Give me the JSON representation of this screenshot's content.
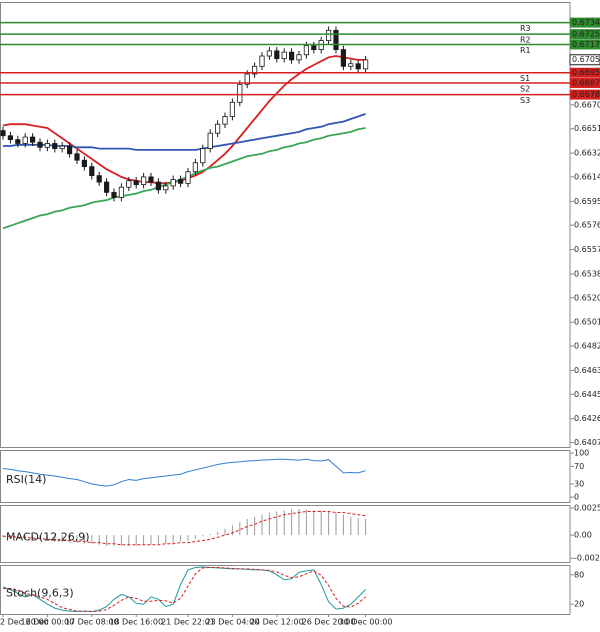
{
  "chart_data": [
    {
      "type": "candlestick",
      "categories": [
        "2 Dec 20:00",
        null,
        null,
        null,
        null,
        null,
        "16 Dec 00:00",
        null,
        null,
        null,
        null,
        null,
        "17 Dec 08:00",
        null,
        null,
        null,
        null,
        null,
        "18 Dec 16:00",
        null,
        null,
        null,
        null,
        null,
        null,
        "21 Dec 22:01",
        null,
        null,
        null,
        null,
        null,
        "23 Dec 04:00",
        null,
        null,
        null,
        null,
        null,
        "24 Dec 12:00",
        null,
        null,
        null,
        null,
        null,
        null,
        "26 Dec 20:00",
        null,
        null,
        null,
        null,
        "30 Dec 00:00"
      ],
      "open": [
        0.665,
        0.6646,
        0.6643,
        0.664,
        0.6645,
        0.6641,
        0.6637,
        0.664,
        0.6636,
        0.6638,
        0.6632,
        0.6627,
        0.6622,
        0.6615,
        0.661,
        0.6602,
        0.6598,
        0.6606,
        0.6611,
        0.6608,
        0.6614,
        0.661,
        0.6604,
        0.6607,
        0.6612,
        0.6609,
        0.6618,
        0.6625,
        0.6636,
        0.6648,
        0.6655,
        0.6661,
        0.6672,
        0.6686,
        0.6694,
        0.67,
        0.6708,
        0.6712,
        0.6706,
        0.6711,
        0.6705,
        0.6709,
        0.6716,
        0.6713,
        0.672,
        0.6728,
        0.6713,
        0.67,
        0.6702,
        0.6698
      ],
      "high": [
        0.6653,
        0.6649,
        0.6646,
        0.6648,
        0.6648,
        0.6644,
        0.6643,
        0.6643,
        0.6641,
        0.6641,
        0.6635,
        0.663,
        0.6625,
        0.6618,
        0.6613,
        0.6605,
        0.6609,
        0.6614,
        0.6614,
        0.6617,
        0.6617,
        0.6613,
        0.661,
        0.6615,
        0.6615,
        0.6621,
        0.6628,
        0.6639,
        0.6651,
        0.6658,
        0.6664,
        0.6675,
        0.6689,
        0.6697,
        0.6703,
        0.6711,
        0.6715,
        0.6715,
        0.6714,
        0.6714,
        0.6712,
        0.6719,
        0.6719,
        0.6723,
        0.6731,
        0.6731,
        0.6716,
        0.6705,
        0.6705,
        0.6708
      ],
      "low": [
        0.6643,
        0.664,
        0.6637,
        0.6637,
        0.6638,
        0.6634,
        0.6634,
        0.6633,
        0.6633,
        0.6629,
        0.6624,
        0.6619,
        0.6612,
        0.6607,
        0.6599,
        0.6595,
        0.6595,
        0.6603,
        0.6605,
        0.6605,
        0.6607,
        0.6601,
        0.6601,
        0.6604,
        0.6606,
        0.6606,
        0.6615,
        0.6622,
        0.6633,
        0.6645,
        0.6652,
        0.6658,
        0.6669,
        0.6683,
        0.6691,
        0.6697,
        0.6705,
        0.6703,
        0.6703,
        0.6702,
        0.6702,
        0.6706,
        0.671,
        0.671,
        0.6717,
        0.671,
        0.6697,
        0.6697,
        0.6695,
        0.6695
      ],
      "close": [
        0.6646,
        0.6643,
        0.664,
        0.6645,
        0.6641,
        0.6637,
        0.664,
        0.6636,
        0.6638,
        0.6632,
        0.6627,
        0.6622,
        0.6615,
        0.661,
        0.6602,
        0.6598,
        0.6606,
        0.6611,
        0.6608,
        0.6614,
        0.661,
        0.6604,
        0.6607,
        0.6612,
        0.6609,
        0.6618,
        0.6625,
        0.6636,
        0.6648,
        0.6655,
        0.6661,
        0.6672,
        0.6686,
        0.6694,
        0.67,
        0.6708,
        0.6712,
        0.6706,
        0.6711,
        0.6705,
        0.6709,
        0.6716,
        0.6713,
        0.672,
        0.6728,
        0.6713,
        0.67,
        0.6702,
        0.6698,
        0.6705
      ],
      "up_color": "#ffffff",
      "down_color": "#1a1a1a",
      "wick_color": "#1a1a1a",
      "series": [
        {
          "color": "#d62020",
          "values": [
            0.6654,
            0.6655,
            0.6655,
            0.6655,
            0.6654,
            0.6653,
            0.6652,
            0.6648,
            0.6644,
            0.664,
            0.6636,
            0.6632,
            0.6628,
            0.6624,
            0.662,
            0.6617,
            0.6614,
            0.6612,
            0.6611,
            0.661,
            0.661,
            0.6609,
            0.6609,
            0.661,
            0.6611,
            0.6613,
            0.6615,
            0.6618,
            0.6622,
            0.6627,
            0.6632,
            0.6638,
            0.6645,
            0.6652,
            0.6659,
            0.6666,
            0.6673,
            0.6679,
            0.6685,
            0.669,
            0.6694,
            0.6698,
            0.6701,
            0.6704,
            0.6707,
            0.6708,
            0.6707,
            0.6706,
            0.6705,
            0.6705
          ]
        },
        {
          "color": "#2f56b4",
          "values": [
            0.6638,
            0.6638,
            0.6639,
            0.6639,
            0.6639,
            0.6639,
            0.6639,
            0.6638,
            0.6638,
            0.6638,
            0.6637,
            0.6637,
            0.6637,
            0.6636,
            0.6636,
            0.6636,
            0.6636,
            0.6636,
            0.6635,
            0.6635,
            0.6635,
            0.6635,
            0.6635,
            0.6635,
            0.6635,
            0.6635,
            0.6635,
            0.6636,
            0.6637,
            0.6638,
            0.6639,
            0.664,
            0.6641,
            0.6642,
            0.6643,
            0.6644,
            0.6645,
            0.6646,
            0.6647,
            0.6648,
            0.6649,
            0.6651,
            0.6652,
            0.6653,
            0.6655,
            0.6656,
            0.6657,
            0.6659,
            0.6661,
            0.6663
          ]
        },
        {
          "color": "#3aa657",
          "values": [
            0.6574,
            0.6576,
            0.6578,
            0.658,
            0.6582,
            0.6584,
            0.6585,
            0.6587,
            0.6588,
            0.659,
            0.6591,
            0.6592,
            0.6594,
            0.6595,
            0.6596,
            0.6598,
            0.6599,
            0.66,
            0.6601,
            0.6603,
            0.6604,
            0.6606,
            0.6608,
            0.661,
            0.6612,
            0.6614,
            0.6617,
            0.6619,
            0.6621,
            0.6622,
            0.6624,
            0.6626,
            0.6628,
            0.663,
            0.6631,
            0.6632,
            0.6634,
            0.6635,
            0.6637,
            0.6638,
            0.664,
            0.6641,
            0.6643,
            0.6644,
            0.6646,
            0.6647,
            0.6648,
            0.6649,
            0.6651,
            0.6652
          ]
        }
      ],
      "levels": [
        {
          "name": "R3",
          "value": 0.6734,
          "label": "0.67340",
          "color": "#2e8b2e"
        },
        {
          "name": "R2",
          "value": 0.6725,
          "label": "0.67250",
          "color": "#2e8b2e"
        },
        {
          "name": "R1",
          "value": 0.6717,
          "label": "0.67170",
          "color": "#2e8b2e"
        },
        {
          "name": "S1",
          "value": 0.6695,
          "label": "0.66950",
          "color": "#d62020"
        },
        {
          "name": "S2",
          "value": 0.6687,
          "label": "0.66870",
          "color": "#d62020"
        },
        {
          "name": "S3",
          "value": 0.6678,
          "label": "0.66780",
          "color": "#d62020"
        }
      ],
      "last_price": {
        "value": 0.67051,
        "label": "0.67051"
      },
      "ylim": [
        0.6404,
        0.675
      ],
      "yticks": [
        {
          "value": 0.667,
          "label": "0.66700"
        },
        0.66515,
        0.66325,
        {
          "value": 0.6614,
          "label": "0.66140"
        },
        {
          "value": 0.6595,
          "label": "0.65950"
        },
        0.65765,
        0.65575,
        0.65385,
        {
          "value": 0.652,
          "label": "0.65200"
        },
        {
          "value": 0.6501,
          "label": "0.65010"
        },
        0.64825,
        0.64635,
        {
          "value": 0.6445,
          "label": "0.64450"
        },
        {
          "value": 0.6426,
          "label": "0.64260"
        },
        0.64075
      ]
    },
    {
      "type": "line",
      "title": "RSI(14)",
      "series": [
        {
          "color": "#2f7fd0",
          "values": [
            65,
            63,
            60,
            58,
            55,
            52,
            50,
            48,
            45,
            42,
            40,
            35,
            30,
            27,
            25,
            28,
            35,
            40,
            38,
            42,
            44,
            46,
            48,
            50,
            52,
            58,
            62,
            66,
            70,
            74,
            77,
            79,
            80,
            82,
            83,
            84,
            85,
            86,
            86,
            85,
            84,
            86,
            83,
            82,
            85,
            70,
            55,
            56,
            55,
            60
          ]
        }
      ],
      "ylim": [
        -11,
        107
      ],
      "yticks": [
        100,
        70,
        30,
        0
      ]
    },
    {
      "type": "line",
      "title": "MACD(12,26,9)",
      "series": [
        {
          "type": "bar",
          "color": "#9a9a9a",
          "values": [
            -0.0002,
            -0.0003,
            -0.0003,
            -0.0004,
            -0.0004,
            -0.0005,
            -0.0005,
            -0.0006,
            -0.0006,
            -0.0007,
            -0.0007,
            -0.0008,
            -0.0008,
            -0.0009,
            -0.001,
            -0.001,
            -0.001,
            -0.001,
            -0.001,
            -0.0009,
            -0.0009,
            -0.0008,
            -0.0008,
            -0.0007,
            -0.0006,
            -0.0005,
            -0.0003,
            -0.0001,
            0.0001,
            0.0003,
            0.0006,
            0.0009,
            0.0012,
            0.0015,
            0.0017,
            0.0019,
            0.0021,
            0.0022,
            0.0023,
            0.0024,
            0.0024,
            0.0024,
            0.0023,
            0.0023,
            0.0022,
            0.0021,
            0.0019,
            0.0017,
            0.0016,
            0.0015
          ]
        },
        {
          "color": "#d62020",
          "dashed": true,
          "values": [
            -0.0001,
            -0.0001,
            -0.0002,
            -0.0002,
            -0.0003,
            -0.0003,
            -0.0004,
            -0.0004,
            -0.0005,
            -0.0005,
            -0.0006,
            -0.0006,
            -0.0007,
            -0.0007,
            -0.0008,
            -0.0008,
            -0.0009,
            -0.0009,
            -0.0009,
            -0.0009,
            -0.0009,
            -0.0009,
            -0.0008,
            -0.0008,
            -0.0007,
            -0.0007,
            -0.0006,
            -0.0005,
            -0.0004,
            -0.0002,
            0,
            0.0002,
            0.0005,
            0.0008,
            0.001,
            0.0013,
            0.0015,
            0.0017,
            0.0019,
            0.002,
            0.0021,
            0.0022,
            0.0022,
            0.0022,
            0.0022,
            0.0021,
            0.0021,
            0.002,
            0.0019,
            0.0018
          ]
        }
      ],
      "ylim": [
        -0.0025,
        0.0028
      ],
      "yticks": [
        0.002524,
        {
          "value": 0,
          "label": "0.00"
        },
        -0.00215
      ]
    },
    {
      "type": "line",
      "title": "Stoch(9,6,3)",
      "series": [
        {
          "color": "#1e9a9a",
          "values": [
            55,
            50,
            42,
            35,
            40,
            30,
            20,
            12,
            8,
            6,
            5,
            6,
            5,
            8,
            15,
            30,
            40,
            35,
            22,
            20,
            35,
            30,
            15,
            20,
            60,
            90,
            95,
            96,
            95,
            94,
            93,
            92,
            92,
            91,
            90,
            90,
            88,
            80,
            70,
            72,
            85,
            88,
            90,
            60,
            25,
            10,
            12,
            20,
            35,
            50
          ]
        },
        {
          "color": "#d62020",
          "dashed": true,
          "values": [
            52,
            52,
            49,
            42,
            39,
            35,
            30,
            21,
            13,
            9,
            6,
            6,
            5,
            6,
            9,
            18,
            28,
            35,
            32,
            26,
            26,
            28,
            27,
            22,
            32,
            57,
            82,
            94,
            95,
            95,
            94,
            93,
            92,
            92,
            91,
            90,
            89,
            86,
            79,
            74,
            76,
            82,
            88,
            79,
            58,
            32,
            16,
            14,
            22,
            35
          ]
        }
      ],
      "ylim": [
        0,
        100
      ],
      "yticks": [
        80,
        20
      ]
    }
  ]
}
